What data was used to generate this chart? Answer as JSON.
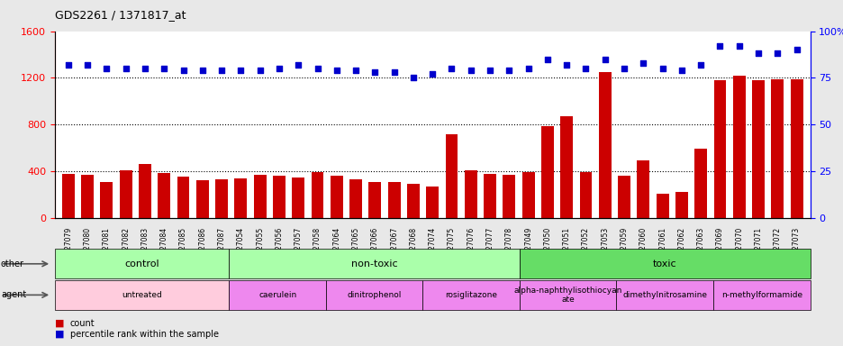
{
  "title": "GDS2261 / 1371817_at",
  "gsm_labels": [
    "GSM127079",
    "GSM127080",
    "GSM127081",
    "GSM127082",
    "GSM127083",
    "GSM127084",
    "GSM127085",
    "GSM127086",
    "GSM127087",
    "GSM127054",
    "GSM127055",
    "GSM127056",
    "GSM127057",
    "GSM127058",
    "GSM127064",
    "GSM127065",
    "GSM127066",
    "GSM127067",
    "GSM127068",
    "GSM127074",
    "GSM127075",
    "GSM127076",
    "GSM127077",
    "GSM127078",
    "GSM127049",
    "GSM127050",
    "GSM127051",
    "GSM127052",
    "GSM127053",
    "GSM127059",
    "GSM127060",
    "GSM127061",
    "GSM127062",
    "GSM127063",
    "GSM127069",
    "GSM127070",
    "GSM127071",
    "GSM127072",
    "GSM127073"
  ],
  "bar_values": [
    380,
    370,
    310,
    410,
    460,
    385,
    355,
    320,
    330,
    340,
    370,
    360,
    350,
    390,
    360,
    335,
    310,
    310,
    290,
    270,
    720,
    410,
    380,
    370,
    390,
    790,
    870,
    390,
    1250,
    360,
    490,
    210,
    220,
    590,
    1180,
    1220,
    1180,
    1185,
    1190
  ],
  "percentile_values": [
    82,
    82,
    80,
    80,
    80,
    80,
    79,
    79,
    79,
    79,
    79,
    80,
    82,
    80,
    79,
    79,
    78,
    78,
    75,
    77,
    80,
    79,
    79,
    79,
    80,
    85,
    82,
    80,
    85,
    80,
    83,
    80,
    79,
    82,
    92,
    92,
    88,
    88,
    90
  ],
  "bar_color": "#cc0000",
  "percentile_color": "#0000cc",
  "ylim_left": [
    0,
    1600
  ],
  "ylim_right": [
    0,
    100
  ],
  "yticks_left": [
    0,
    400,
    800,
    1200,
    1600
  ],
  "yticks_right": [
    0,
    25,
    50,
    75,
    100
  ],
  "group_other": [
    {
      "label": "control",
      "start": 0,
      "end": 9,
      "color": "#aaffaa"
    },
    {
      "label": "non-toxic",
      "start": 9,
      "end": 24,
      "color": "#aaffaa"
    },
    {
      "label": "toxic",
      "start": 24,
      "end": 39,
      "color": "#66dd66"
    }
  ],
  "group_agent": [
    {
      "label": "untreated",
      "start": 0,
      "end": 9,
      "color": "#ffccdd"
    },
    {
      "label": "caerulein",
      "start": 9,
      "end": 14,
      "color": "#ee88ee"
    },
    {
      "label": "dinitrophenol",
      "start": 14,
      "end": 19,
      "color": "#ee88ee"
    },
    {
      "label": "rosiglitazone",
      "start": 19,
      "end": 24,
      "color": "#ee88ee"
    },
    {
      "label": "alpha-naphthylisothiocyan\nate",
      "start": 24,
      "end": 29,
      "color": "#ee88ee"
    },
    {
      "label": "dimethylnitrosamine",
      "start": 29,
      "end": 34,
      "color": "#ee88ee"
    },
    {
      "label": "n-methylformamide",
      "start": 34,
      "end": 39,
      "color": "#ee88ee"
    }
  ],
  "bg_color": "#e8e8e8",
  "plot_bg_color": "#ffffff"
}
